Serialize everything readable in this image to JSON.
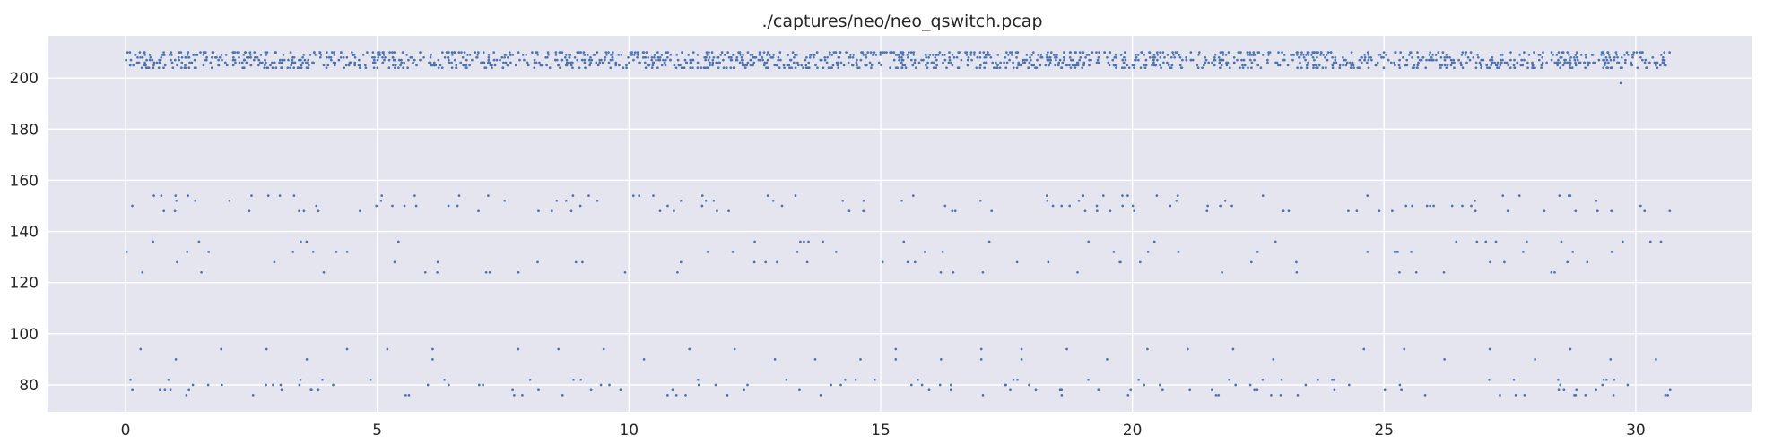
{
  "chart_data": {
    "type": "scatter",
    "title": "./captures/neo/neo_qswitch.pcap",
    "xlabel": "",
    "ylabel": "",
    "xlim": [
      -1.55,
      32.3
    ],
    "ylim": [
      69.5,
      216.5
    ],
    "x_ticks": [
      0,
      5,
      10,
      15,
      20,
      25,
      30
    ],
    "x_tick_labels": [
      "0",
      "5",
      "10",
      "15",
      "20",
      "25",
      "30"
    ],
    "y_ticks": [
      80,
      100,
      120,
      140,
      160,
      180,
      200
    ],
    "y_tick_labels": [
      "80",
      "100",
      "120",
      "140",
      "160",
      "180",
      "200"
    ],
    "grid": true,
    "style": "seaborn-darkgrid",
    "background_color": "#e5e5f0",
    "grid_color": "#ffffff",
    "point_color": "#4c72b0",
    "x_range": [
      0,
      30.7
    ],
    "bands": [
      {
        "name": "high",
        "y_values": [
          204,
          205,
          206,
          207,
          208,
          209,
          210
        ],
        "points_per_unit_x": 52
      },
      {
        "name": "upper-mid",
        "y_values": [
          148,
          150,
          152,
          154
        ],
        "points_per_unit_x": 4.2
      },
      {
        "name": "lower-mid",
        "y_values": [
          124,
          128,
          132,
          136
        ],
        "points_per_unit_x": 3.2
      },
      {
        "name": "low",
        "y_values": [
          76,
          78,
          80,
          82
        ],
        "points_per_unit_x": 4.4
      }
    ],
    "sparse_points": [
      {
        "x": 0.3,
        "y": 94
      },
      {
        "x": 1.0,
        "y": 90
      },
      {
        "x": 1.9,
        "y": 94
      },
      {
        "x": 2.8,
        "y": 94
      },
      {
        "x": 3.6,
        "y": 90
      },
      {
        "x": 4.4,
        "y": 94
      },
      {
        "x": 5.2,
        "y": 94
      },
      {
        "x": 6.1,
        "y": 94
      },
      {
        "x": 6.1,
        "y": 90
      },
      {
        "x": 7.8,
        "y": 94
      },
      {
        "x": 8.6,
        "y": 94
      },
      {
        "x": 9.5,
        "y": 94
      },
      {
        "x": 10.3,
        "y": 90
      },
      {
        "x": 11.2,
        "y": 94
      },
      {
        "x": 12.1,
        "y": 94
      },
      {
        "x": 12.9,
        "y": 90
      },
      {
        "x": 13.7,
        "y": 90
      },
      {
        "x": 14.6,
        "y": 90
      },
      {
        "x": 15.3,
        "y": 94
      },
      {
        "x": 15.3,
        "y": 90
      },
      {
        "x": 16.2,
        "y": 90
      },
      {
        "x": 17.0,
        "y": 94
      },
      {
        "x": 17.0,
        "y": 90
      },
      {
        "x": 17.8,
        "y": 94
      },
      {
        "x": 17.8,
        "y": 90
      },
      {
        "x": 18.7,
        "y": 94
      },
      {
        "x": 19.5,
        "y": 90
      },
      {
        "x": 20.3,
        "y": 94
      },
      {
        "x": 21.1,
        "y": 94
      },
      {
        "x": 22.0,
        "y": 94
      },
      {
        "x": 22.8,
        "y": 90
      },
      {
        "x": 24.6,
        "y": 94
      },
      {
        "x": 25.4,
        "y": 94
      },
      {
        "x": 26.2,
        "y": 90
      },
      {
        "x": 27.1,
        "y": 94
      },
      {
        "x": 28.0,
        "y": 90
      },
      {
        "x": 28.7,
        "y": 94
      },
      {
        "x": 29.5,
        "y": 90
      },
      {
        "x": 30.4,
        "y": 90
      },
      {
        "x": 29.7,
        "y": 198
      }
    ]
  }
}
